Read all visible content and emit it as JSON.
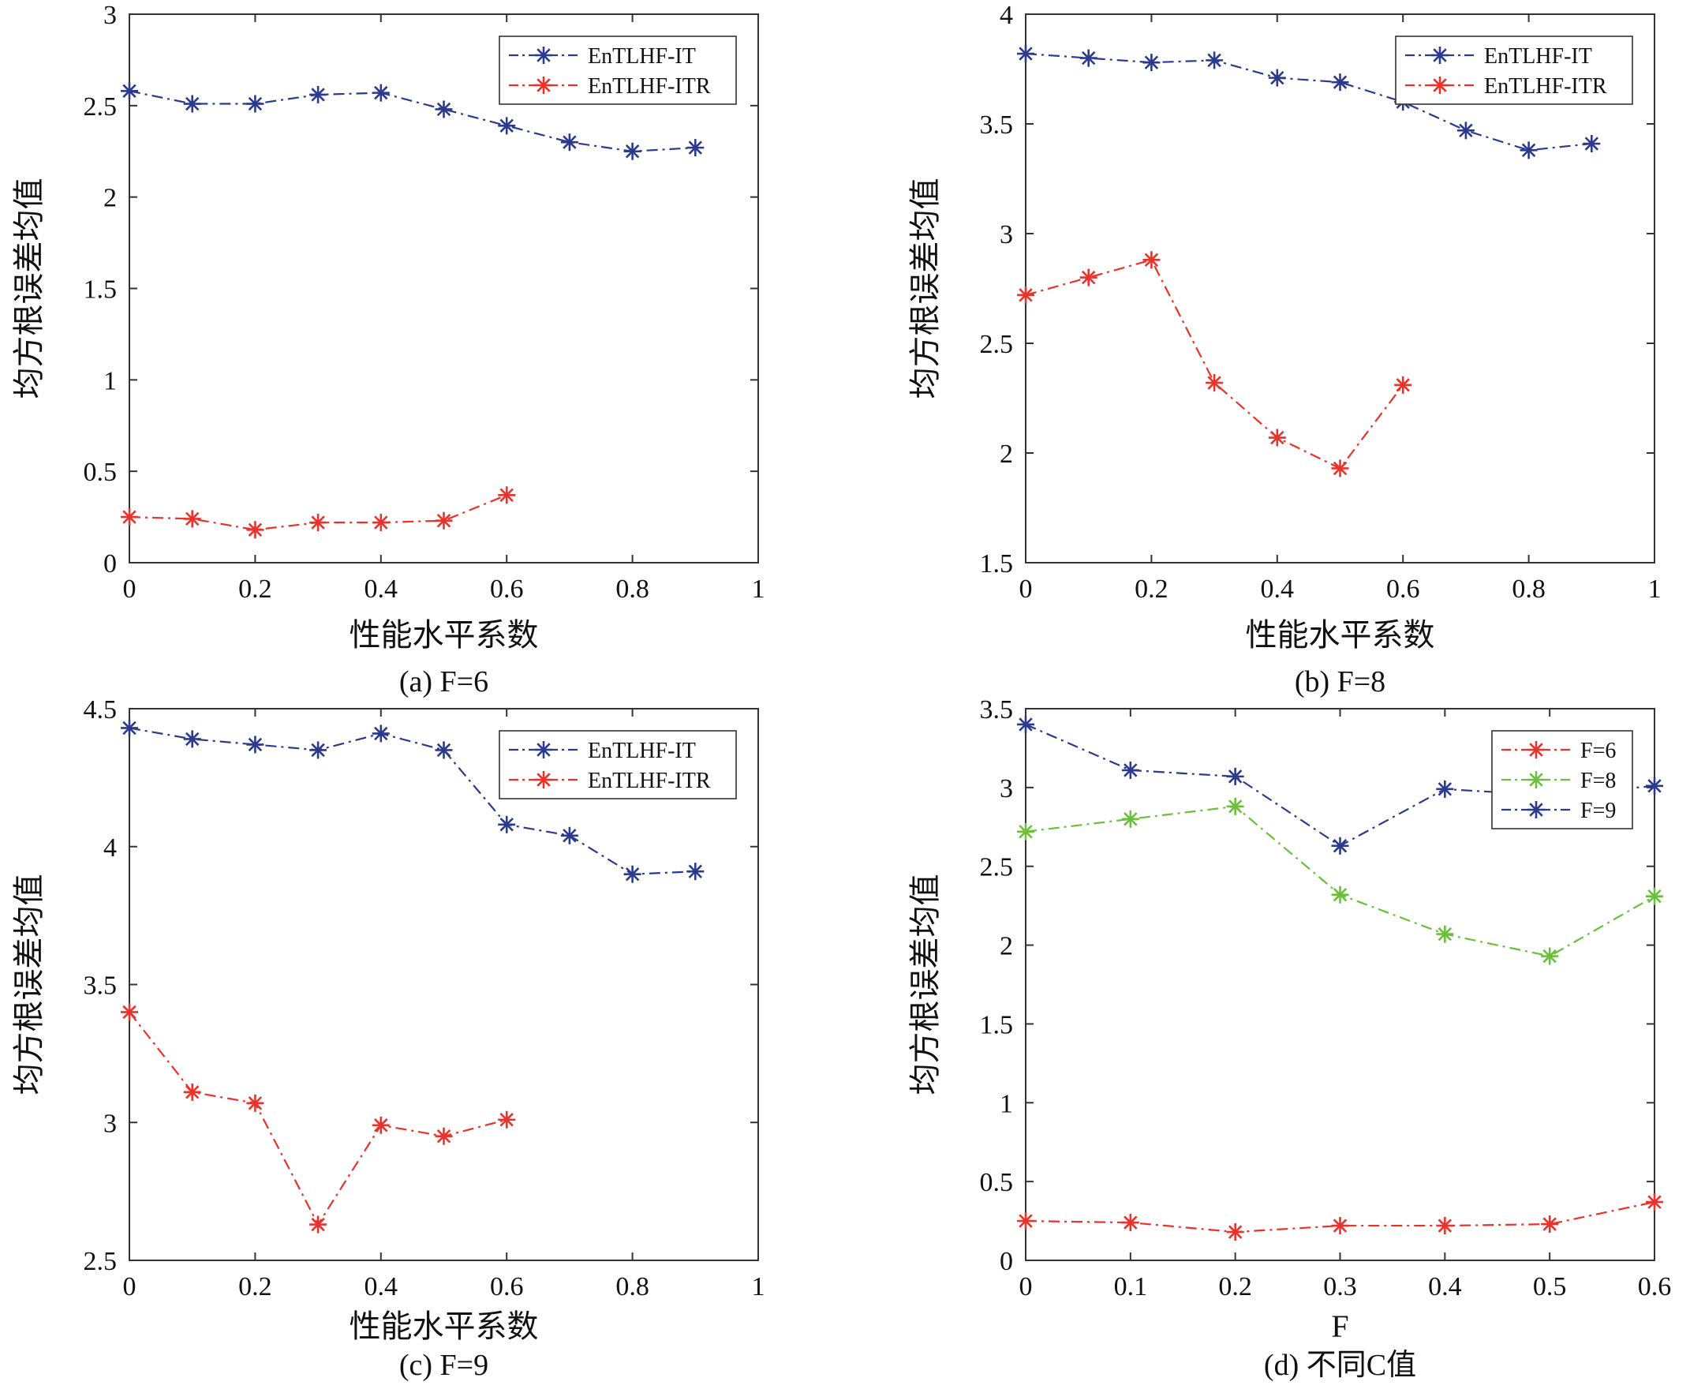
{
  "colors": {
    "blue": "#2b3a8c",
    "red": "#e8322b",
    "green": "#6cbf3c"
  },
  "chart_data": [
    {
      "type": "line",
      "caption": "(a) F=6",
      "xlabel": "性能水平系数",
      "ylabel": "均方根误差均值",
      "xlim": [
        0,
        1
      ],
      "ylim": [
        0,
        3
      ],
      "xticks": [
        0,
        0.2,
        0.4,
        0.6,
        0.8,
        1
      ],
      "xtick_labels": [
        "0",
        "0.2",
        "0.4",
        "0.6",
        "0.8",
        "1"
      ],
      "yticks": [
        0,
        0.5,
        1,
        1.5,
        2,
        2.5,
        3
      ],
      "ytick_labels": [
        "0",
        "0.5",
        "1",
        "1.5",
        "2",
        "2.5",
        "3"
      ],
      "legend_position": "top-right",
      "series": [
        {
          "name": "EnTLHF-IT",
          "color": "blue",
          "x": [
            0,
            0.1,
            0.2,
            0.3,
            0.4,
            0.5,
            0.6,
            0.7,
            0.8,
            0.9
          ],
          "y": [
            2.58,
            2.51,
            2.51,
            2.56,
            2.57,
            2.48,
            2.39,
            2.3,
            2.25,
            2.27
          ]
        },
        {
          "name": "EnTLHF-ITR",
          "color": "red",
          "x": [
            0,
            0.1,
            0.2,
            0.3,
            0.4,
            0.5,
            0.6
          ],
          "y": [
            0.25,
            0.24,
            0.18,
            0.22,
            0.22,
            0.23,
            0.37
          ]
        }
      ]
    },
    {
      "type": "line",
      "caption": "(b) F=8",
      "xlabel": "性能水平系数",
      "ylabel": "均方根误差均值",
      "xlim": [
        0,
        1
      ],
      "ylim": [
        1.5,
        4
      ],
      "xticks": [
        0,
        0.2,
        0.4,
        0.6,
        0.8,
        1
      ],
      "xtick_labels": [
        "0",
        "0.2",
        "0.4",
        "0.6",
        "0.8",
        "1"
      ],
      "yticks": [
        1.5,
        2,
        2.5,
        3,
        3.5,
        4
      ],
      "ytick_labels": [
        "1.5",
        "2",
        "2.5",
        "3",
        "3.5",
        "4"
      ],
      "legend_position": "top-right",
      "series": [
        {
          "name": "EnTLHF-IT",
          "color": "blue",
          "x": [
            0,
            0.1,
            0.2,
            0.3,
            0.4,
            0.5,
            0.6,
            0.7,
            0.8,
            0.9
          ],
          "y": [
            3.82,
            3.8,
            3.78,
            3.79,
            3.71,
            3.69,
            3.6,
            3.47,
            3.38,
            3.41
          ]
        },
        {
          "name": "EnTLHF-ITR",
          "color": "red",
          "x": [
            0,
            0.1,
            0.2,
            0.3,
            0.4,
            0.5,
            0.6
          ],
          "y": [
            2.72,
            2.8,
            2.88,
            2.32,
            2.07,
            1.93,
            2.31
          ]
        }
      ]
    },
    {
      "type": "line",
      "caption": "(c) F=9",
      "xlabel": "性能水平系数",
      "ylabel": "均方根误差均值",
      "xlim": [
        0,
        1
      ],
      "ylim": [
        2.5,
        4.5
      ],
      "xticks": [
        0,
        0.2,
        0.4,
        0.6,
        0.8,
        1
      ],
      "xtick_labels": [
        "0",
        "0.2",
        "0.4",
        "0.6",
        "0.8",
        "1"
      ],
      "yticks": [
        2.5,
        3,
        3.5,
        4,
        4.5
      ],
      "ytick_labels": [
        "2.5",
        "3",
        "3.5",
        "4",
        "4.5"
      ],
      "legend_position": "top-right",
      "series": [
        {
          "name": "EnTLHF-IT",
          "color": "blue",
          "x": [
            0,
            0.1,
            0.2,
            0.3,
            0.4,
            0.5,
            0.6,
            0.7,
            0.8,
            0.9
          ],
          "y": [
            4.43,
            4.39,
            4.37,
            4.35,
            4.41,
            4.35,
            4.08,
            4.04,
            3.9,
            3.91
          ]
        },
        {
          "name": "EnTLHF-ITR",
          "color": "red",
          "x": [
            0,
            0.1,
            0.2,
            0.3,
            0.4,
            0.5,
            0.6
          ],
          "y": [
            3.4,
            3.11,
            3.07,
            2.63,
            2.99,
            2.95,
            3.01
          ]
        }
      ]
    },
    {
      "type": "line",
      "caption": "(d) 不同C值",
      "xlabel": "F",
      "ylabel": "均方根误差均值",
      "xlim": [
        0,
        0.6
      ],
      "ylim": [
        0,
        3.5
      ],
      "xticks": [
        0,
        0.1,
        0.2,
        0.3,
        0.4,
        0.5,
        0.6
      ],
      "xtick_labels": [
        "0",
        "0.1",
        "0.2",
        "0.3",
        "0.4",
        "0.5",
        "0.6"
      ],
      "yticks": [
        0,
        0.5,
        1,
        1.5,
        2,
        2.5,
        3,
        3.5
      ],
      "ytick_labels": [
        "0",
        "0.5",
        "1",
        "1.5",
        "2",
        "2.5",
        "3",
        "3.5"
      ],
      "legend_position": "top-right",
      "series": [
        {
          "name": "F=6",
          "color": "red",
          "x": [
            0,
            0.1,
            0.2,
            0.3,
            0.4,
            0.5,
            0.6
          ],
          "y": [
            0.25,
            0.24,
            0.18,
            0.22,
            0.22,
            0.23,
            0.37
          ]
        },
        {
          "name": "F=8",
          "color": "green",
          "x": [
            0,
            0.1,
            0.2,
            0.3,
            0.4,
            0.5,
            0.6
          ],
          "y": [
            2.72,
            2.8,
            2.88,
            2.32,
            2.07,
            1.93,
            2.31
          ]
        },
        {
          "name": "F=9",
          "color": "blue",
          "x": [
            0,
            0.1,
            0.2,
            0.3,
            0.4,
            0.5,
            0.6
          ],
          "y": [
            3.4,
            3.11,
            3.07,
            2.63,
            2.99,
            2.95,
            3.01
          ]
        }
      ]
    }
  ]
}
